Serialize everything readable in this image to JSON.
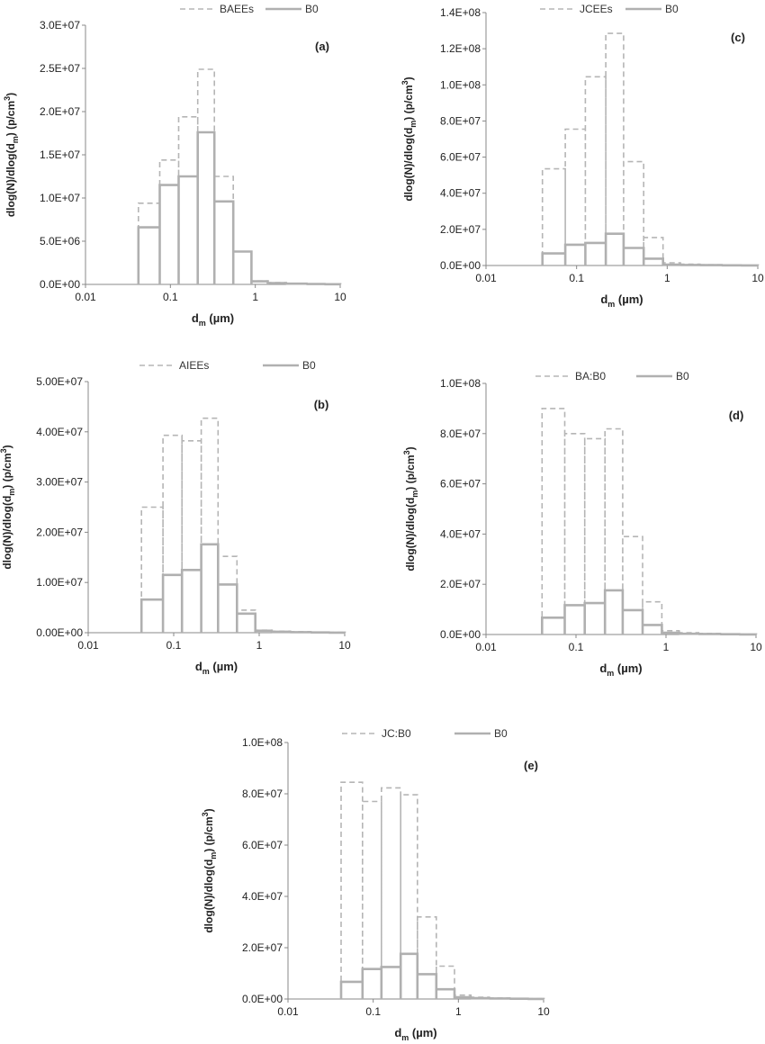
{
  "colors": {
    "dashed": "#b5b5b5",
    "solid": "#b0b0b0",
    "axis": "#888888",
    "text": "#222222"
  },
  "chart_data": [
    {
      "type": "bar",
      "panel_label": "(a)",
      "xlabel_main": "d",
      "xlabel_sub": "m",
      "xlabel_unit": " (µm)",
      "ylabel_1": "dlog(N)/dlog(d",
      "ylabel_sub": "m",
      "ylabel_2": ") (p/cm",
      "ylabel_sup": "3",
      "ylabel_3": ")",
      "x_scale": "log",
      "xlim": [
        0.01,
        10
      ],
      "x_ticks": [
        "0.01",
        "0.1",
        "1",
        "10"
      ],
      "ylim": [
        0,
        30000000
      ],
      "y_ticks": [
        "0.0E+00",
        "5.0E+06",
        "1.0E+07",
        "1.5E+07",
        "2.0E+07",
        "2.5E+07",
        "3.0E+07"
      ],
      "bin_edges": [
        0.042,
        0.075,
        0.125,
        0.21,
        0.33,
        0.55,
        0.9,
        1.4,
        2.3,
        4,
        6.5,
        10
      ],
      "series": [
        {
          "name": "BAEEs",
          "style": "dashed",
          "values": [
            9400000,
            14400000,
            19400000,
            24900000,
            12500000,
            3800000,
            400000,
            200000,
            100000,
            50000,
            20000
          ]
        },
        {
          "name": "B0",
          "style": "solid",
          "values": [
            6600000,
            11500000,
            12500000,
            17600000,
            9600000,
            3800000,
            350000,
            150000,
            80000,
            40000,
            20000
          ]
        }
      ]
    },
    {
      "type": "bar",
      "panel_label": "(c)",
      "xlabel_main": "d",
      "xlabel_sub": "m",
      "xlabel_unit": " (µm)",
      "ylabel_1": "dlog(N)/dlog(d",
      "ylabel_sub": "m",
      "ylabel_2": ") (p/cm",
      "ylabel_sup": "3",
      "ylabel_3": ")",
      "x_scale": "log",
      "xlim": [
        0.01,
        10
      ],
      "x_ticks": [
        "0.01",
        "0.1",
        "1",
        "10"
      ],
      "ylim": [
        0,
        140000000
      ],
      "y_ticks": [
        "0.0E+00",
        "2.0E+07",
        "4.0E+07",
        "6.0E+07",
        "8.0E+07",
        "1.0E+08",
        "1.2E+08",
        "1.4E+08"
      ],
      "bin_edges": [
        0.042,
        0.075,
        0.125,
        0.21,
        0.33,
        0.55,
        0.9,
        1.4,
        2.3,
        4,
        6.5,
        10
      ],
      "series": [
        {
          "name": "JCEEs",
          "style": "dashed",
          "values": [
            53500000,
            75500000,
            104500000,
            128500000,
            57500000,
            15500000,
            1500000,
            700000,
            400000,
            200000,
            100000
          ]
        },
        {
          "name": "B0",
          "style": "solid",
          "values": [
            6700000,
            11500000,
            12500000,
            17600000,
            9700000,
            3800000,
            500000,
            300000,
            200000,
            100000,
            50000
          ]
        }
      ]
    },
    {
      "type": "bar",
      "panel_label": "(b)",
      "xlabel_main": "d",
      "xlabel_sub": "m",
      "xlabel_unit": " (µm)",
      "ylabel_1": "dlog(N)/dlog(d",
      "ylabel_sub": "m",
      "ylabel_2": ") (p/cm",
      "ylabel_sup": "3",
      "ylabel_3": ")",
      "x_scale": "log",
      "xlim": [
        0.01,
        10
      ],
      "x_ticks": [
        "0.01",
        "0.1",
        "1",
        "10"
      ],
      "ylim": [
        0,
        50000000
      ],
      "y_ticks": [
        "0.00E+00",
        "1.00E+07",
        "2.00E+07",
        "3.00E+07",
        "4.00E+07",
        "5.00E+07"
      ],
      "bin_edges": [
        0.042,
        0.075,
        0.125,
        0.21,
        0.33,
        0.55,
        0.9,
        1.4,
        2.3,
        4,
        6.5,
        10
      ],
      "series": [
        {
          "name": "AIEEs",
          "style": "dashed",
          "values": [
            25000000,
            39300000,
            38200000,
            42700000,
            15200000,
            4500000,
            500000,
            300000,
            200000,
            100000,
            50000
          ]
        },
        {
          "name": "B0",
          "style": "solid",
          "values": [
            6600000,
            11500000,
            12500000,
            17600000,
            9600000,
            3800000,
            400000,
            200000,
            100000,
            50000,
            20000
          ]
        }
      ]
    },
    {
      "type": "bar",
      "panel_label": "(d)",
      "xlabel_main": "d",
      "xlabel_sub": "m",
      "xlabel_unit": " (µm)",
      "ylabel_1": "dlog(N)/dlog(d",
      "ylabel_sub": "m",
      "ylabel_2": ") (p/cm",
      "ylabel_sup": "3",
      "ylabel_3": ")",
      "x_scale": "log",
      "xlim": [
        0.01,
        10
      ],
      "x_ticks": [
        "0.01",
        "0.1",
        "1",
        "10"
      ],
      "ylim": [
        0,
        100000000
      ],
      "y_ticks": [
        "0.0E+00",
        "2.0E+07",
        "4.0E+07",
        "6.0E+07",
        "8.0E+07",
        "1.0E+08"
      ],
      "bin_edges": [
        0.042,
        0.075,
        0.125,
        0.21,
        0.33,
        0.55,
        0.9,
        1.4,
        2.3,
        4,
        6.5,
        10
      ],
      "series": [
        {
          "name": "BA:B0",
          "style": "dashed",
          "values": [
            90000000,
            80000000,
            78000000,
            81900000,
            39000000,
            13000000,
            1500000,
            700000,
            400000,
            200000,
            100000
          ]
        },
        {
          "name": "B0",
          "style": "solid",
          "values": [
            6700000,
            11700000,
            12500000,
            17600000,
            9700000,
            3800000,
            700000,
            300000,
            200000,
            100000,
            50000
          ]
        }
      ]
    },
    {
      "type": "bar",
      "panel_label": "(e)",
      "xlabel_main": "d",
      "xlabel_sub": "m",
      "xlabel_unit": " (µm)",
      "ylabel_1": "dlog(N)/dlog(d",
      "ylabel_sub": "m",
      "ylabel_2": ") (p/cm",
      "ylabel_sup": "3",
      "ylabel_3": ")",
      "x_scale": "log",
      "xlim": [
        0.01,
        10
      ],
      "x_ticks": [
        "0.01",
        "0.1",
        "1",
        "10"
      ],
      "ylim": [
        0,
        100000000
      ],
      "y_ticks": [
        "0.0E+00",
        "2.0E+07",
        "4.0E+07",
        "6.0E+07",
        "8.0E+07",
        "1.0E+08"
      ],
      "bin_edges": [
        0.042,
        0.075,
        0.125,
        0.21,
        0.33,
        0.55,
        0.9,
        1.4,
        2.3,
        4,
        6.5,
        10
      ],
      "series": [
        {
          "name": "JC:B0",
          "style": "dashed",
          "values": [
            84500000,
            77000000,
            82300000,
            79600000,
            32000000,
            12800000,
            1500000,
            700000,
            400000,
            200000,
            100000
          ]
        },
        {
          "name": "B0",
          "style": "solid",
          "values": [
            6700000,
            11700000,
            12500000,
            17600000,
            9700000,
            3800000,
            700000,
            300000,
            200000,
            100000,
            50000
          ]
        }
      ]
    }
  ]
}
